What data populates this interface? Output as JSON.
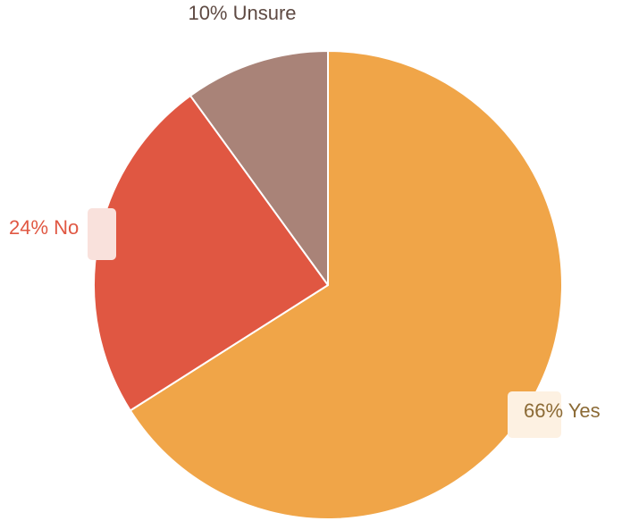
{
  "chart_data": {
    "type": "pie",
    "slices": [
      {
        "label": "Yes",
        "value": 66,
        "text": "66% Yes",
        "color": "#f0a548",
        "label_color": "#8b6a35",
        "label_bg": "#fdf1e2"
      },
      {
        "label": "No",
        "value": 24,
        "text": "24% No",
        "color": "#e05742",
        "label_color": "#e05742",
        "label_bg": "#f9e1dc"
      },
      {
        "label": "Unsure",
        "value": 10,
        "text": "10% Unsure",
        "color": "#a98378",
        "label_color": "#5e4a43",
        "label_bg": "#ffffff"
      }
    ],
    "start_angle_deg": 0,
    "direction": "clockwise",
    "legend": "none",
    "labels": "outside"
  }
}
